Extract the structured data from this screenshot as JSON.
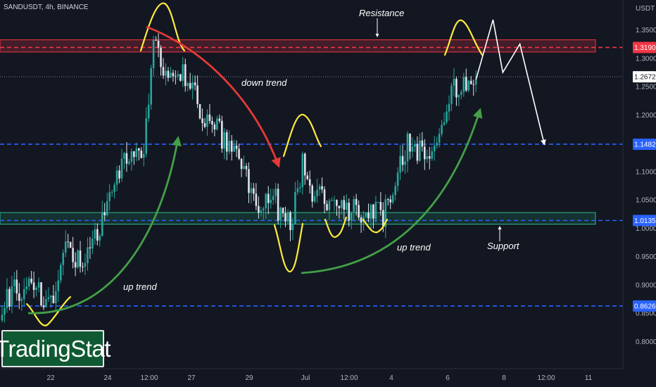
{
  "symbol_info": "SANDUSDT, 4h, BINANCE",
  "logo_text": "TradingStat",
  "colors": {
    "background": "#131722",
    "up_candle": "#26a69a",
    "down_candle": "#e0e3eb",
    "resistance_zone": "#f23645",
    "support_zone": "#2ebd85",
    "level_line": "#2962ff",
    "down_trend_arrow": "#e53935",
    "up_trend_arrow": "#43a047",
    "pattern_highlight": "#ffeb3b",
    "projection": "#ffffff"
  },
  "chart_data": {
    "type": "candlestick",
    "ylabel": "USDT",
    "y_ticks": [
      "1.3500",
      "1.3000",
      "1.2500",
      "1.2000",
      "1.1500",
      "1.1000",
      "1.0500",
      "1.0000",
      "0.9500",
      "0.9000",
      "0.8500",
      "0.8000"
    ],
    "x_ticks": [
      "22",
      "24",
      "12:00",
      "27",
      "29",
      "Jul",
      "12:00",
      "4",
      "6",
      "8",
      "12:00",
      "11"
    ],
    "ylim": [
      0.77,
      1.375
    ],
    "last_price": 1.2672,
    "price_levels": [
      {
        "value": 1.319,
        "label": "1.3190",
        "style": "dashed",
        "color": "#f23645"
      },
      {
        "value": 1.1482,
        "label": "1.1482",
        "style": "dashed",
        "color": "#2962ff"
      },
      {
        "value": 1.0135,
        "label": "1.0135",
        "style": "dashed",
        "color": "#2962ff"
      },
      {
        "value": 0.8626,
        "label": "0.8626",
        "style": "dashed",
        "color": "#2962ff"
      }
    ],
    "zones": [
      {
        "name": "resistance",
        "from": 1.311,
        "to": 1.3325
      },
      {
        "name": "support",
        "from": 1.007,
        "to": 1.0275
      }
    ],
    "annotations": [
      "Resistance",
      "Support",
      "down trend",
      "up trend",
      "up trend"
    ],
    "close_path": [
      [
        0,
        0.872
      ],
      [
        12,
        0.905
      ],
      [
        20,
        0.868
      ],
      [
        26,
        0.96
      ],
      [
        34,
        0.932
      ],
      [
        40,
        1.0
      ],
      [
        52,
        1.135
      ],
      [
        58,
        1.147
      ],
      [
        62,
        1.325
      ],
      [
        67,
        1.262
      ],
      [
        74,
        1.276
      ],
      [
        84,
        1.185
      ],
      [
        95,
        1.14
      ],
      [
        104,
        1.045
      ],
      [
        112,
        1.045
      ],
      [
        118,
        1.0
      ],
      [
        123,
        1.12
      ],
      [
        128,
        1.05
      ],
      [
        136,
        1.05
      ],
      [
        146,
        1.03
      ],
      [
        152,
        1.035
      ],
      [
        156,
        1.02
      ],
      [
        166,
        1.15
      ],
      [
        174,
        1.12
      ],
      [
        180,
        1.2
      ],
      [
        186,
        1.25
      ],
      [
        194,
        1.262
      ]
    ],
    "projection": [
      [
        194,
        1.262
      ],
      [
        201,
        1.368
      ],
      [
        205,
        1.275
      ],
      [
        212,
        1.325
      ],
      [
        222,
        1.148
      ]
    ]
  }
}
